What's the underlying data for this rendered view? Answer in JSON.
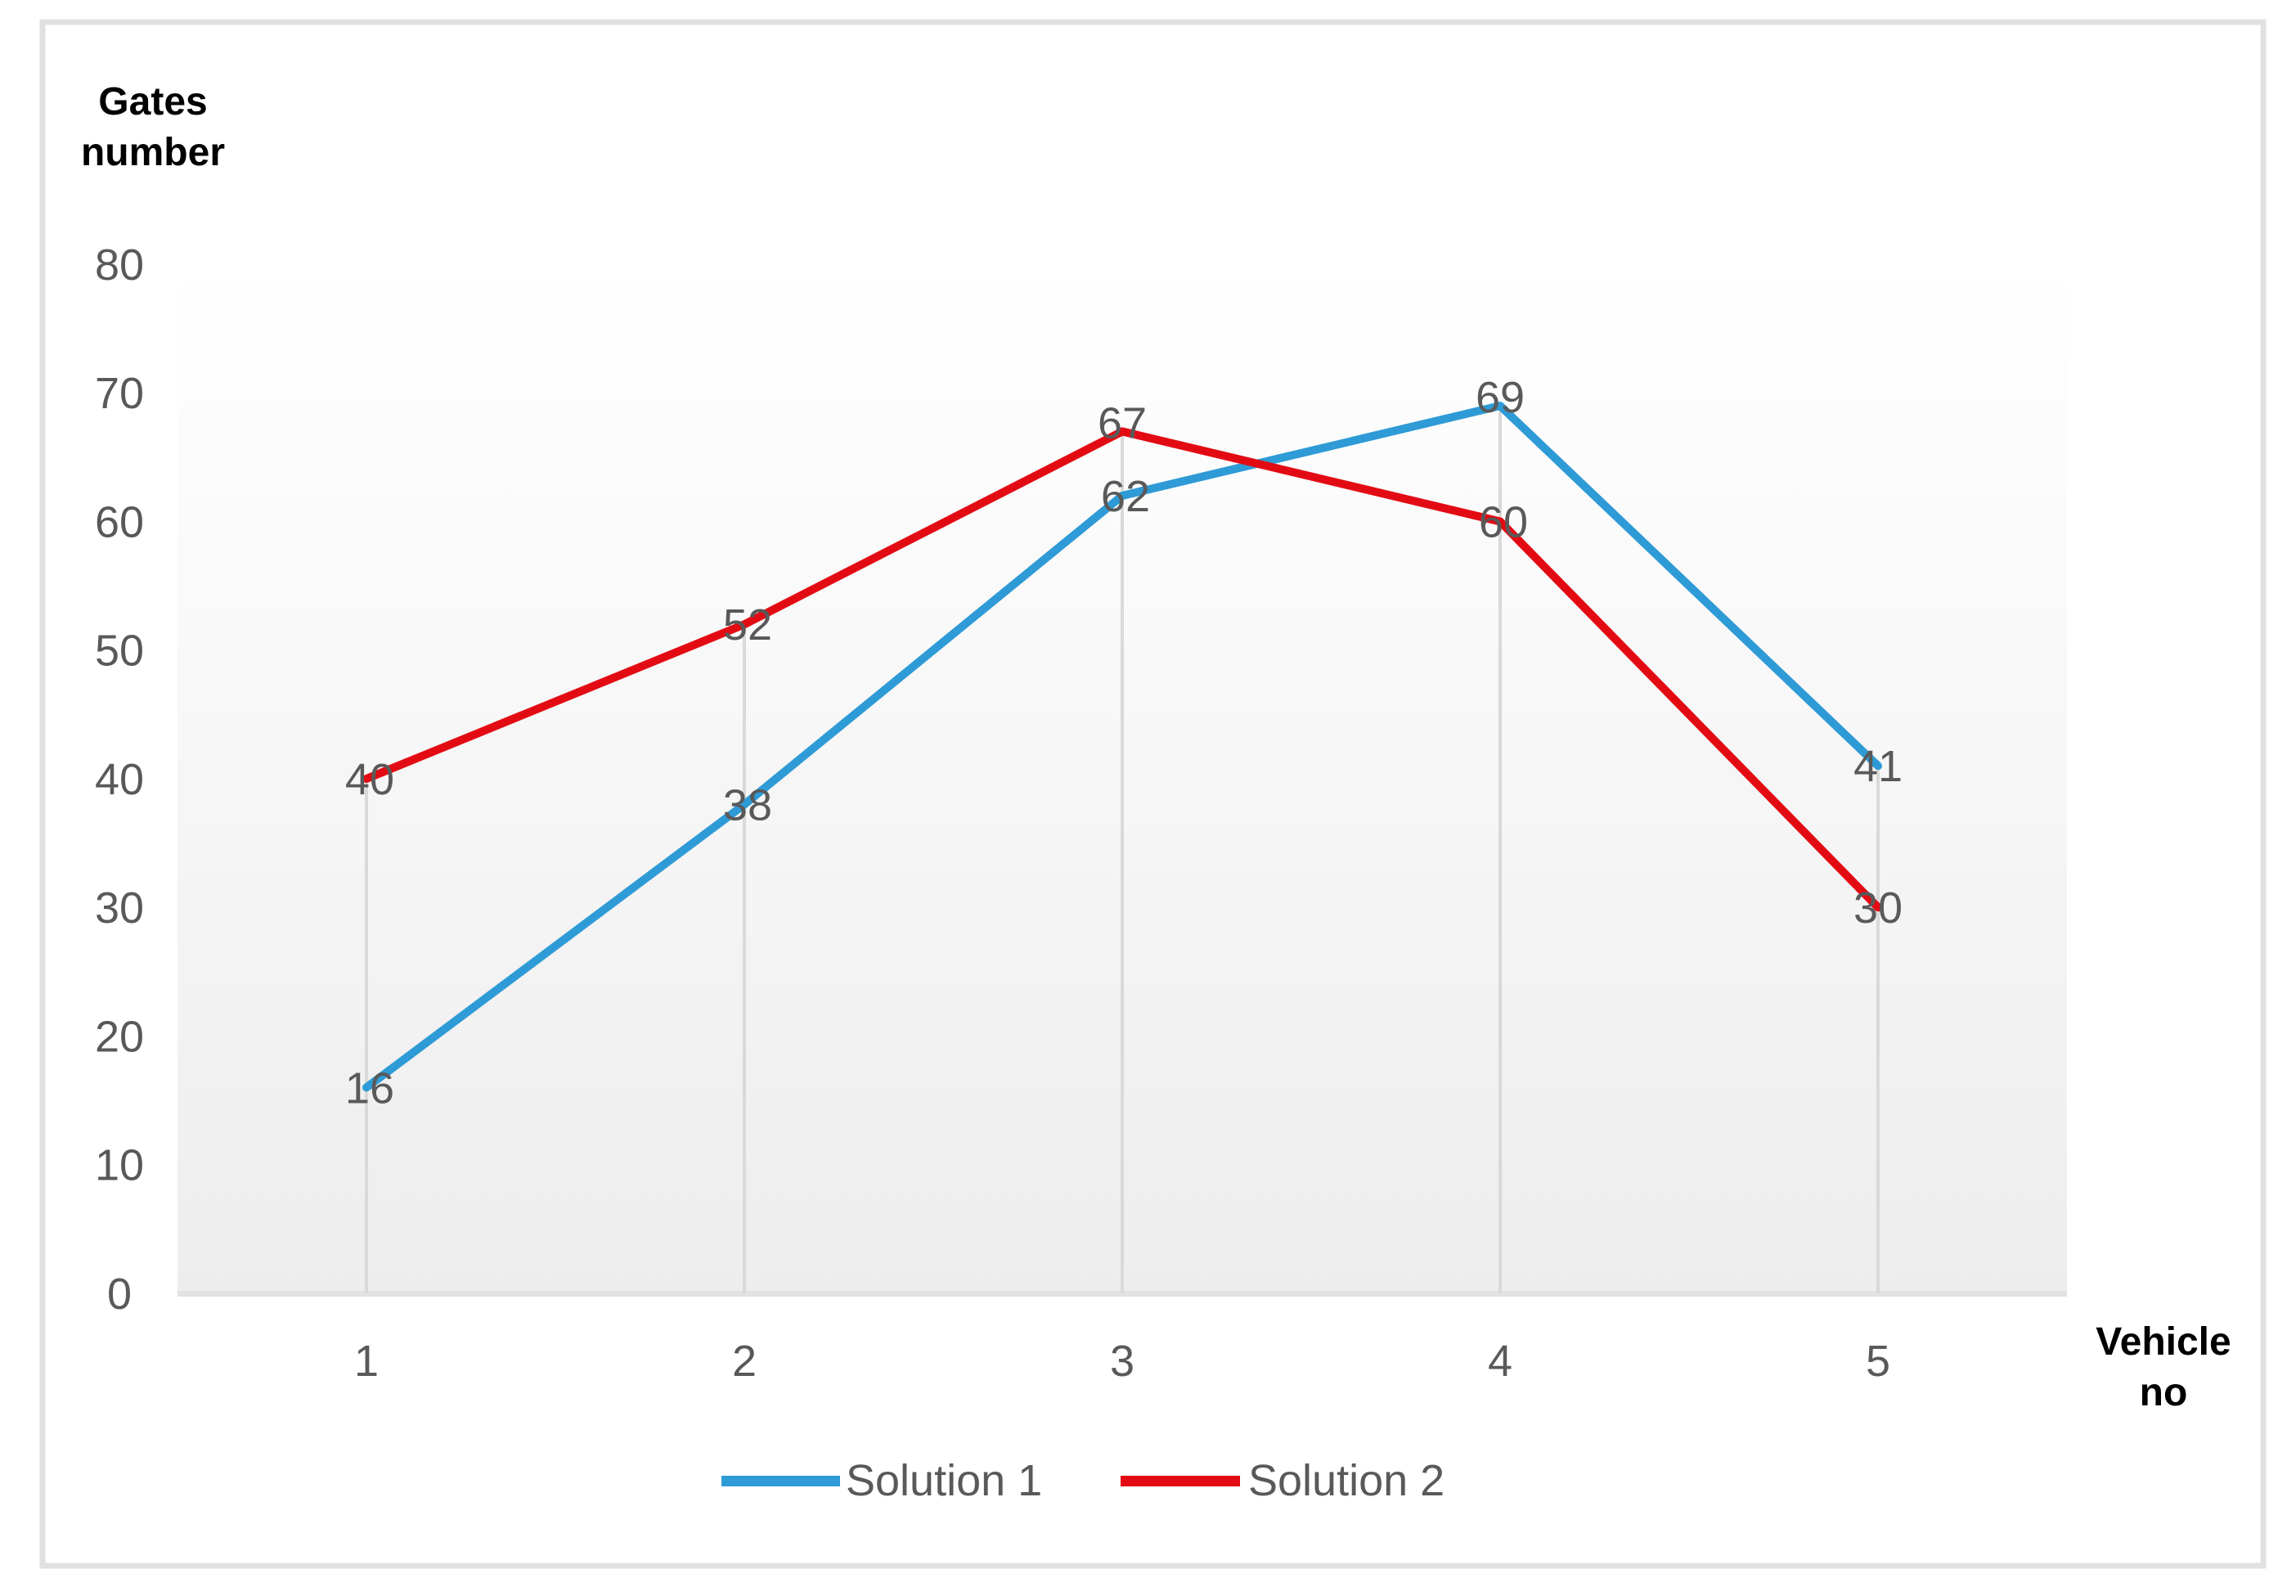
{
  "chart_data": {
    "type": "line",
    "title": "",
    "ylabel": "Gates number",
    "ylabel_lines": [
      "Gates",
      "number"
    ],
    "xlabel": "Vehicle no",
    "xlabel_lines": [
      "Vehicle",
      "no"
    ],
    "categories": [
      "1",
      "2",
      "3",
      "4",
      "5"
    ],
    "series": [
      {
        "name": "Solution 1",
        "color": "#2E9BD6",
        "values": [
          16,
          38,
          62,
          69,
          41
        ]
      },
      {
        "name": "Solution 2",
        "color": "#E30B13",
        "values": [
          40,
          52,
          67,
          60,
          30
        ]
      }
    ],
    "ylim": [
      0,
      80
    ],
    "ytick_step": 10,
    "yticks": [
      0,
      10,
      20,
      30,
      40,
      50,
      60,
      70,
      80
    ],
    "grid": "vertical-drop-lines-only",
    "legend_position": "bottom",
    "data_labels": "shown at each point"
  },
  "colors": {
    "axis_text": "#595959",
    "data_label_text": "#595959",
    "legend_text": "#595959",
    "title_text": "#000000",
    "drop_line": "#D9D9D9",
    "axis_line": "#E2E2E2",
    "frame": "#E1E1E1",
    "plot_top": "#FFFFFF",
    "plot_mid": "#FAFAFA",
    "plot_bottom": "#EDEDED"
  }
}
